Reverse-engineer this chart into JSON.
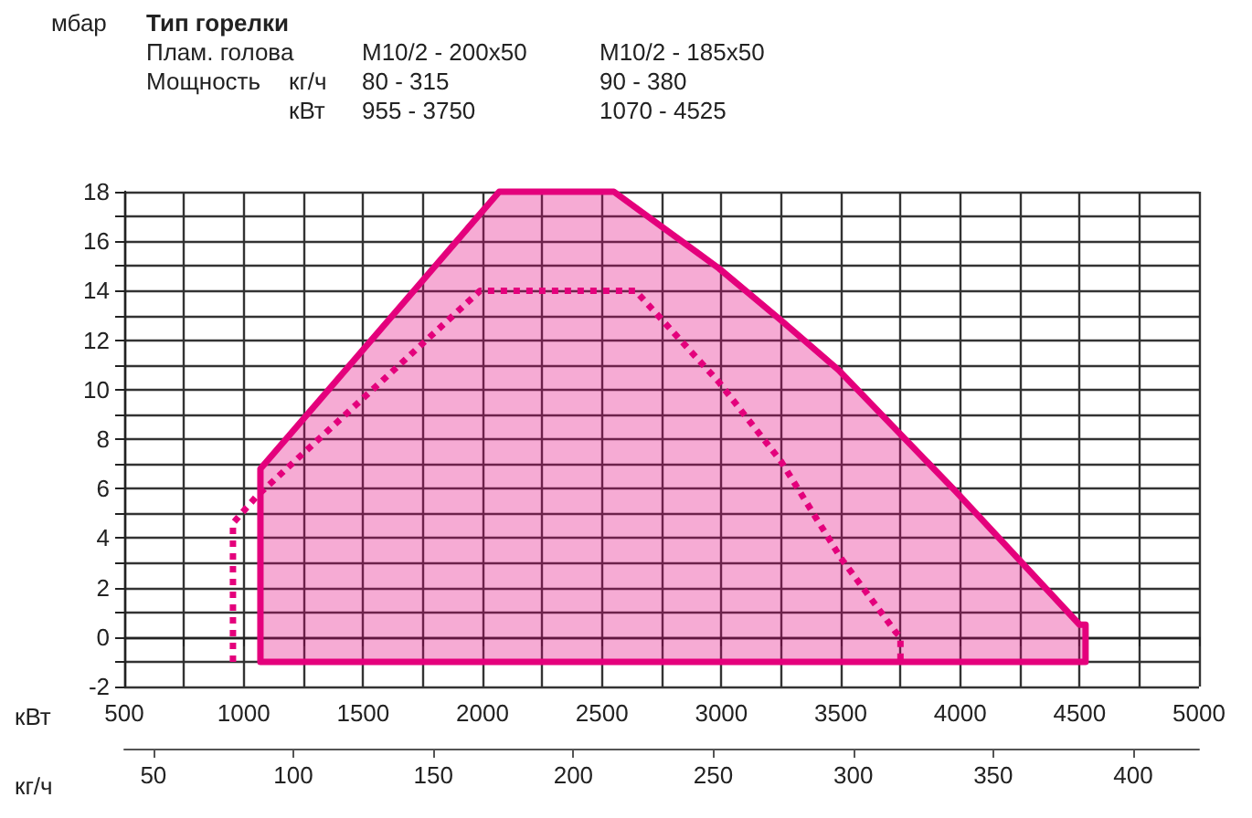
{
  "chart_data": {
    "type": "line",
    "title": "Тип горелки",
    "xlabel": "кВт",
    "x2label": "кг/ч",
    "annotations": [
      "Плам. голова",
      "M10/2 - 200x50",
      "M10/2 - 185x50",
      "Мощность",
      "кг/ч",
      "80 - 315",
      "90 - 380",
      "кВт",
      "955 - 3750",
      "1070 - 4525",
      "мбар"
    ],
    "xlim": [
      500,
      5000
    ],
    "xticks": [
      500,
      {
        "value": 750,
        "label": null
      },
      1000,
      {
        "value": 1250,
        "label": null
      },
      1500,
      {
        "value": 1750,
        "label": null
      },
      2000,
      {
        "value": 2250,
        "label": null
      },
      2500,
      {
        "value": 2750,
        "label": null
      },
      3000,
      {
        "value": 3250,
        "label": null
      },
      3500,
      {
        "value": 3750,
        "label": null
      },
      4000,
      {
        "value": 4250,
        "label": null
      },
      4500,
      {
        "value": 4750,
        "label": null
      },
      5000
    ],
    "ylim": [
      -2,
      18
    ],
    "yticks": [
      -2,
      {
        "value": -1,
        "label": null
      },
      0,
      {
        "value": 1,
        "label": null
      },
      2,
      {
        "value": 3,
        "label": null
      },
      4,
      {
        "value": 5,
        "label": null
      },
      6,
      {
        "value": 7,
        "label": null
      },
      8,
      {
        "value": 9,
        "label": null
      },
      10,
      {
        "value": 11,
        "label": null
      },
      12,
      {
        "value": 13,
        "label": null
      },
      14,
      {
        "value": 15,
        "label": null
      },
      16,
      {
        "value": 17,
        "label": null
      },
      18
    ],
    "x2lim": [
      39.6,
      423.5
    ],
    "x2ticks": [
      50,
      100,
      150,
      200,
      250,
      300,
      350,
      400
    ],
    "grid": true,
    "marker": "none",
    "series": [
      {
        "type": "area",
        "color": "#e4007c",
        "line_style": "solid",
        "x": [
          1070,
          1070,
          2070,
          2550,
          2990,
          3250,
          3490,
          3750,
          3980,
          4240,
          4500,
          4525,
          4525
        ],
        "values": [
          -1,
          6.8,
          18,
          18,
          14.9,
          12.8,
          10.8,
          8.2,
          5.9,
          3.2,
          0.5,
          0.5,
          -1
        ]
      },
      {
        "color": "#e4007c",
        "line_style": "dotted",
        "x": [
          955,
          955,
          1055,
          1990,
          2640,
          2990,
          3250,
          3500,
          3730,
          3750,
          3750
        ],
        "values": [
          -1,
          4.6,
          5.7,
          14,
          14,
          10.3,
          7.1,
          3.2,
          0.2,
          0,
          -1
        ]
      }
    ]
  }
}
